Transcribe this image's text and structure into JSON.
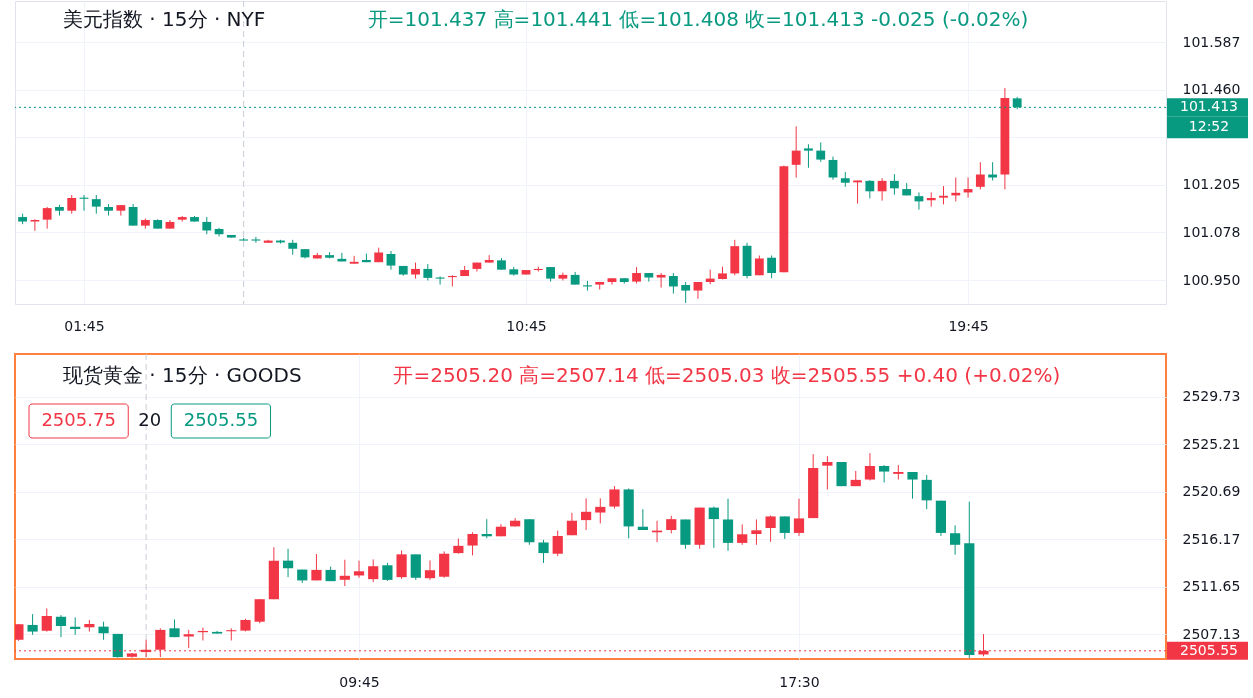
{
  "chart_data": [
    {
      "type": "candlestick",
      "title": "美元指数 · 15分 · NYF",
      "subtitle": "开=101.437 高=101.441 低=101.408 收=101.413 -0.025 (-0.02%)",
      "x": [
        0.5,
        0.75,
        1,
        1.25,
        1.5,
        1.75,
        2,
        2.25,
        2.5,
        2.75,
        3,
        3.25,
        3.5,
        3.75,
        4,
        4.25,
        4.5,
        4.75,
        5,
        5.25,
        5.5,
        5.75,
        6,
        6.25,
        6.5,
        6.75,
        7,
        7.25,
        7.5,
        7.75,
        8,
        8.25,
        8.5,
        8.75,
        9,
        9.25,
        9.5,
        9.75,
        10,
        10.25,
        10.5,
        10.75,
        11,
        11.25,
        11.5,
        11.75,
        12,
        12.25,
        12.5,
        12.75,
        13,
        13.25,
        13.5,
        13.75,
        14,
        14.25,
        14.5,
        14.75,
        15,
        15.25,
        15.5,
        15.75,
        16,
        16.25,
        16.5,
        16.75,
        17,
        17.25,
        17.5,
        17.75,
        18,
        18.25,
        18.5,
        18.75,
        19,
        19.25,
        19.5,
        19.75,
        20,
        20.25,
        20.5,
        20.75
      ],
      "ohlc": [
        [
          101.119,
          101.128,
          101.1,
          101.107
        ],
        [
          101.107,
          101.113,
          101.082,
          101.111
        ],
        [
          101.112,
          101.146,
          101.088,
          101.143
        ],
        [
          101.146,
          101.152,
          101.123,
          101.136
        ],
        [
          101.136,
          101.178,
          101.128,
          101.17
        ],
        [
          101.171,
          101.178,
          101.136,
          101.168
        ],
        [
          101.167,
          101.178,
          101.128,
          101.147
        ],
        [
          101.146,
          101.154,
          101.123,
          101.136
        ],
        [
          101.136,
          101.151,
          101.123,
          101.151
        ],
        [
          101.146,
          101.154,
          101.096,
          101.096
        ],
        [
          101.096,
          101.115,
          101.088,
          101.111
        ],
        [
          101.111,
          101.113,
          101.088,
          101.088
        ],
        [
          101.088,
          101.111,
          101.088,
          101.106
        ],
        [
          101.112,
          101.122,
          101.107,
          101.119
        ],
        [
          101.119,
          101.122,
          101.107,
          101.107
        ],
        [
          101.106,
          101.119,
          101.073,
          101.083
        ],
        [
          101.087,
          101.09,
          101.067,
          101.073
        ],
        [
          101.071,
          101.071,
          101.064,
          101.064
        ],
        [
          101.059,
          101.063,
          101.056,
          101.056
        ],
        [
          101.059,
          101.066,
          101.05,
          101.056
        ],
        [
          101.05,
          101.058,
          101.05,
          101.056
        ],
        [
          101.056,
          101.058,
          101.048,
          101.051
        ],
        [
          101.05,
          101.058,
          101.018,
          101.034
        ],
        [
          101.033,
          101.033,
          101.008,
          101.011
        ],
        [
          101.008,
          101.023,
          101.008,
          101.017
        ],
        [
          101.017,
          101.025,
          101.008,
          101.01
        ],
        [
          101.007,
          101.023,
          101.0,
          101.0
        ],
        [
          100.994,
          101.015,
          100.994,
          100.999
        ],
        [
          101.004,
          101.021,
          100.998,
          100.998
        ],
        [
          100.998,
          101.037,
          100.998,
          101.024
        ],
        [
          101.02,
          101.028,
          100.978,
          100.989
        ],
        [
          100.988,
          100.988,
          100.962,
          100.965
        ],
        [
          100.965,
          100.997,
          100.954,
          100.98
        ],
        [
          100.98,
          100.993,
          100.949,
          100.956
        ],
        [
          100.957,
          100.96,
          100.938,
          100.954
        ],
        [
          100.958,
          100.963,
          100.933,
          100.961
        ],
        [
          100.961,
          100.988,
          100.961,
          100.977
        ],
        [
          100.98,
          100.997,
          100.973,
          100.997
        ],
        [
          100.997,
          101.017,
          100.997,
          101.004
        ],
        [
          101.003,
          101.009,
          100.978,
          100.978
        ],
        [
          100.979,
          100.985,
          100.962,
          100.965
        ],
        [
          100.965,
          100.977,
          100.965,
          100.977
        ],
        [
          100.977,
          100.986,
          100.973,
          100.98
        ],
        [
          100.985,
          100.985,
          100.946,
          100.954
        ],
        [
          100.954,
          100.97,
          100.949,
          100.964
        ],
        [
          100.964,
          100.972,
          100.938,
          100.938
        ],
        [
          100.936,
          100.948,
          100.922,
          100.933
        ],
        [
          100.938,
          100.945,
          100.925,
          100.945
        ],
        [
          100.945,
          100.955,
          100.938,
          100.955
        ],
        [
          100.955,
          100.955,
          100.941,
          100.945
        ],
        [
          100.946,
          100.985,
          100.941,
          100.969
        ],
        [
          100.969,
          100.969,
          100.946,
          100.957
        ],
        [
          100.957,
          100.969,
          100.93,
          100.964
        ],
        [
          100.961,
          100.969,
          100.914,
          100.933
        ],
        [
          100.937,
          100.945,
          100.889,
          100.922
        ],
        [
          100.922,
          100.945,
          100.9,
          100.945
        ],
        [
          100.945,
          100.978,
          100.939,
          100.954
        ],
        [
          100.953,
          100.986,
          100.952,
          100.968
        ],
        [
          100.968,
          101.058,
          100.963,
          101.041
        ],
        [
          101.042,
          101.05,
          100.955,
          100.961
        ],
        [
          100.963,
          101.016,
          100.963,
          101.008
        ],
        [
          101.01,
          101.016,
          100.955,
          100.969
        ],
        [
          100.971,
          101.257,
          100.971,
          101.255
        ],
        [
          101.259,
          101.362,
          101.225,
          101.297
        ],
        [
          101.303,
          101.314,
          101.251,
          101.297
        ],
        [
          101.297,
          101.319,
          101.267,
          101.273
        ],
        [
          101.272,
          101.281,
          101.219,
          101.225
        ],
        [
          101.223,
          101.24,
          101.2,
          101.211
        ],
        [
          101.212,
          101.217,
          101.155,
          101.217
        ],
        [
          101.216,
          101.218,
          101.169,
          101.188
        ],
        [
          101.188,
          101.223,
          101.163,
          101.216
        ],
        [
          101.216,
          101.234,
          101.179,
          101.196
        ],
        [
          101.194,
          101.21,
          101.177,
          101.177
        ],
        [
          101.175,
          101.185,
          101.139,
          101.161
        ],
        [
          101.164,
          101.185,
          101.147,
          101.17
        ],
        [
          101.171,
          101.202,
          101.153,
          101.176
        ],
        [
          101.177,
          101.225,
          101.161,
          101.184
        ],
        [
          101.185,
          101.225,
          101.171,
          101.194
        ],
        [
          101.2,
          101.266,
          101.193,
          101.233
        ],
        [
          101.233,
          101.266,
          101.217,
          101.225
        ],
        [
          101.233,
          101.465,
          101.193,
          101.438
        ],
        [
          101.437,
          101.441,
          101.408,
          101.413
        ]
      ],
      "colors": [
        "#089981",
        "#f23645",
        "#f23645",
        "#089981",
        "#f23645",
        "#089981",
        "#089981",
        "#089981",
        "#f23645",
        "#089981",
        "#f23645",
        "#089981",
        "#f23645",
        "#f23645",
        "#089981",
        "#089981",
        "#089981",
        "#089981",
        "#089981",
        "#089981",
        "#f23645",
        "#089981",
        "#089981",
        "#089981",
        "#f23645",
        "#089981",
        "#089981",
        "#f23645",
        "#089981",
        "#f23645",
        "#089981",
        "#089981",
        "#f23645",
        "#089981",
        "#089981",
        "#f23645",
        "#f23645",
        "#f23645",
        "#f23645",
        "#089981",
        "#089981",
        "#f23645",
        "#f23645",
        "#089981",
        "#f23645",
        "#089981",
        "#089981",
        "#f23645",
        "#f23645",
        "#089981",
        "#f23645",
        "#089981",
        "#f23645",
        "#089981",
        "#089981",
        "#f23645",
        "#f23645",
        "#f23645",
        "#f23645",
        "#089981",
        "#f23645",
        "#089981",
        "#f23645",
        "#f23645",
        "#089981",
        "#089981",
        "#089981",
        "#089981",
        "#f23645",
        "#089981",
        "#f23645",
        "#089981",
        "#089981",
        "#089981",
        "#f23645",
        "#f23645",
        "#f23645",
        "#f23645",
        "#f23645",
        "#089981",
        "#f23645",
        "#089981"
      ],
      "xlim": [
        0.345,
        23.78
      ],
      "ylim": [
        100.886,
        101.698
      ],
      "xticks": [
        {
          "value": 1.75,
          "label": "01:45"
        },
        {
          "value": 10.75,
          "label": "10:45"
        },
        {
          "value": 19.75,
          "label": "19:45"
        }
      ],
      "yticks": [
        101.587,
        {
          "value": 101.46,
          "label": "101.460"
        },
        {
          "value": 101.333,
          "label": null
        },
        101.205,
        101.078,
        {
          "value": 100.95,
          "label": "100.950"
        }
      ],
      "grid": true,
      "ref_lines": [
        {
          "axis": "x",
          "value": 5,
          "color": "#c9ccd6",
          "line_style": "dashed"
        },
        {
          "axis": "y",
          "value": 101.413,
          "label": "101.413",
          "color": "#089981",
          "line_style": "dotted"
        }
      ],
      "annotations": [
        "12:52"
      ]
    },
    {
      "type": "candlestick",
      "title": "现货黄金 · 15分 · GOODS",
      "subtitle": "开=2505.20 高=2507.14 低=2505.03 收=2505.55 +0.40 (+0.02%)",
      "x": [
        3.75,
        4,
        4.25,
        4.5,
        4.75,
        5,
        5.25,
        5.5,
        5.75,
        6,
        6.25,
        6.5,
        6.75,
        7,
        7.25,
        7.5,
        7.75,
        8,
        8.25,
        8.5,
        8.75,
        9,
        9.25,
        9.5,
        9.75,
        10,
        10.25,
        10.5,
        10.75,
        11,
        11.25,
        11.5,
        11.75,
        12,
        12.25,
        12.5,
        12.75,
        13,
        13.25,
        13.5,
        13.75,
        14,
        14.25,
        14.5,
        14.75,
        15,
        15.25,
        15.5,
        15.75,
        16,
        16.25,
        16.5,
        16.75,
        17,
        17.25,
        17.5,
        17.75,
        18,
        18.25,
        18.5,
        18.75,
        19,
        19.25,
        19.5,
        19.75,
        20,
        20.25,
        20.5,
        20.75
      ],
      "ohlc": [
        [
          2506.6,
          2508.1,
          2506.5,
          2508.07
        ],
        [
          2508.01,
          2509.04,
          2507.07,
          2507.38
        ],
        [
          2507.47,
          2509.58,
          2507.38,
          2508.86
        ],
        [
          2508.79,
          2508.95,
          2506.85,
          2507.91
        ],
        [
          2507.85,
          2508.73,
          2507.07,
          2507.63
        ],
        [
          2507.79,
          2508.48,
          2507.38,
          2508.1
        ],
        [
          2507.85,
          2508.32,
          2506.6,
          2507.22
        ],
        [
          2507.16,
          2507.16,
          2504.9,
          2504.95
        ],
        [
          2504.98,
          2505.34,
          2504.9,
          2505.3
        ],
        [
          2505.43,
          2506.6,
          2504.95,
          2505.65
        ],
        [
          2505.65,
          2507.69,
          2504.95,
          2507.54
        ],
        [
          2507.69,
          2508.54,
          2506.85,
          2506.85
        ],
        [
          2506.91,
          2507.54,
          2505.81,
          2507.13
        ],
        [
          2507.32,
          2507.76,
          2506.53,
          2507.44
        ],
        [
          2507.35,
          2507.44,
          2507.19,
          2507.19
        ],
        [
          2507.41,
          2507.69,
          2506.53,
          2507.51
        ],
        [
          2507.47,
          2508.6,
          2507.4,
          2508.48
        ],
        [
          2508.32,
          2510.46,
          2508.17,
          2510.46
        ],
        [
          2510.46,
          2515.41,
          2510.46,
          2514.13
        ],
        [
          2514.13,
          2515.26,
          2512.56,
          2513.41
        ],
        [
          2513.28,
          2513.28,
          2512.0,
          2512.25
        ],
        [
          2512.25,
          2514.76,
          2512.25,
          2513.25
        ],
        [
          2513.25,
          2513.56,
          2512.18,
          2512.18
        ],
        [
          2512.31,
          2514.22,
          2511.71,
          2512.69
        ],
        [
          2512.72,
          2514.13,
          2512.5,
          2513.12
        ],
        [
          2512.37,
          2514.25,
          2512.1,
          2513.6
        ],
        [
          2513.69,
          2513.91,
          2512.2,
          2512.3
        ],
        [
          2512.56,
          2515.1,
          2512.4,
          2514.73
        ],
        [
          2514.73,
          2514.73,
          2512.3,
          2512.5
        ],
        [
          2512.46,
          2514.16,
          2512.3,
          2513.22
        ],
        [
          2512.6,
          2515.01,
          2512.5,
          2514.79
        ],
        [
          2514.85,
          2516.23,
          2514.79,
          2515.54
        ],
        [
          2515.57,
          2516.83,
          2514.63,
          2516.67
        ],
        [
          2516.67,
          2518.08,
          2516.26,
          2516.45
        ],
        [
          2516.45,
          2517.61,
          2516.45,
          2517.36
        ],
        [
          2517.39,
          2518.18,
          2517.39,
          2517.93
        ],
        [
          2518.08,
          2518.08,
          2515.64,
          2515.89
        ],
        [
          2515.86,
          2516.11,
          2513.91,
          2514.85
        ],
        [
          2514.79,
          2516.99,
          2514.57,
          2516.48
        ],
        [
          2516.55,
          2518.68,
          2516.55,
          2517.93
        ],
        [
          2517.99,
          2520.06,
          2517.05,
          2518.78
        ],
        [
          2518.71,
          2520.06,
          2517.68,
          2519.25
        ],
        [
          2519.28,
          2521.22,
          2519.09,
          2520.91
        ],
        [
          2520.91,
          2521.0,
          2516.26,
          2517.39
        ],
        [
          2517.36,
          2519.03,
          2517.05,
          2517.05
        ],
        [
          2516.83,
          2517.93,
          2515.89,
          2516.99
        ],
        [
          2517.05,
          2518.4,
          2516.73,
          2518.08
        ],
        [
          2518.05,
          2518.05,
          2515.26,
          2515.64
        ],
        [
          2515.64,
          2519.18,
          2515.26,
          2519.18
        ],
        [
          2519.18,
          2519.28,
          2515.35,
          2518.09
        ],
        [
          2518.05,
          2520.03,
          2515.07,
          2515.82
        ],
        [
          2515.82,
          2517.58,
          2515.64,
          2516.64
        ],
        [
          2516.67,
          2518.05,
          2515.64,
          2517.02
        ],
        [
          2517.24,
          2518.43,
          2515.92,
          2518.34
        ],
        [
          2518.34,
          2518.34,
          2516.2,
          2516.77
        ],
        [
          2516.77,
          2520.03,
          2516.49,
          2518.15
        ],
        [
          2518.18,
          2524.27,
          2518.18,
          2522.95
        ],
        [
          2523.17,
          2524.08,
          2520.91,
          2523.52
        ],
        [
          2523.52,
          2523.52,
          2521.22,
          2521.22
        ],
        [
          2521.22,
          2522.67,
          2521.22,
          2521.82
        ],
        [
          2521.85,
          2524.36,
          2521.76,
          2523.14
        ],
        [
          2523.14,
          2523.23,
          2521.57,
          2522.61
        ],
        [
          2522.39,
          2523.23,
          2521.85,
          2522.57
        ],
        [
          2522.57,
          2522.57,
          2520.03,
          2521.85
        ],
        [
          2521.82,
          2522.29,
          2519.03,
          2519.87
        ],
        [
          2519.84,
          2519.84,
          2516.49,
          2516.77
        ],
        [
          2516.74,
          2517.49,
          2514.7,
          2515.64
        ],
        [
          2515.79,
          2519.75,
          2504.87,
          2505.15
        ],
        [
          2505.2,
          2507.14,
          2505.03,
          2505.55
        ]
      ],
      "colors": [
        "#f23645",
        "#089981",
        "#f23645",
        "#089981",
        "#089981",
        "#f23645",
        "#089981",
        "#089981",
        "#f23645",
        "#f23645",
        "#f23645",
        "#089981",
        "#f23645",
        "#f23645",
        "#089981",
        "#f23645",
        "#f23645",
        "#f23645",
        "#f23645",
        "#089981",
        "#089981",
        "#f23645",
        "#089981",
        "#f23645",
        "#f23645",
        "#f23645",
        "#089981",
        "#f23645",
        "#089981",
        "#f23645",
        "#f23645",
        "#f23645",
        "#f23645",
        "#089981",
        "#f23645",
        "#f23645",
        "#089981",
        "#089981",
        "#f23645",
        "#f23645",
        "#f23645",
        "#f23645",
        "#f23645",
        "#089981",
        "#089981",
        "#f23645",
        "#f23645",
        "#089981",
        "#f23645",
        "#089981",
        "#089981",
        "#f23645",
        "#f23645",
        "#f23645",
        "#089981",
        "#f23645",
        "#f23645",
        "#f23645",
        "#089981",
        "#f23645",
        "#f23645",
        "#089981",
        "#f23645",
        "#089981",
        "#089981",
        "#089981",
        "#089981",
        "#089981",
        "#f23645"
      ],
      "xlim": [
        3.69,
        23.965
      ],
      "ylim": [
        2504.77,
        2533.8
      ],
      "xticks": [
        {
          "value": 9.75,
          "label": "09:45"
        },
        {
          "value": 17.5,
          "label": "17:30"
        }
      ],
      "yticks": [
        2507.13,
        2511.65,
        2516.17,
        2520.69,
        2525.21,
        2529.73
      ],
      "grid": true,
      "ref_lines": [
        {
          "axis": "x",
          "value": 6,
          "color": "#c9ccd6",
          "line_style": "dashed"
        },
        {
          "axis": "y",
          "value": 2505.55,
          "label": "2505.55",
          "color": "#f23645",
          "line_style": "dotted"
        }
      ],
      "annotations": [
        "2505.75",
        "20",
        "2505.55"
      ]
    }
  ]
}
